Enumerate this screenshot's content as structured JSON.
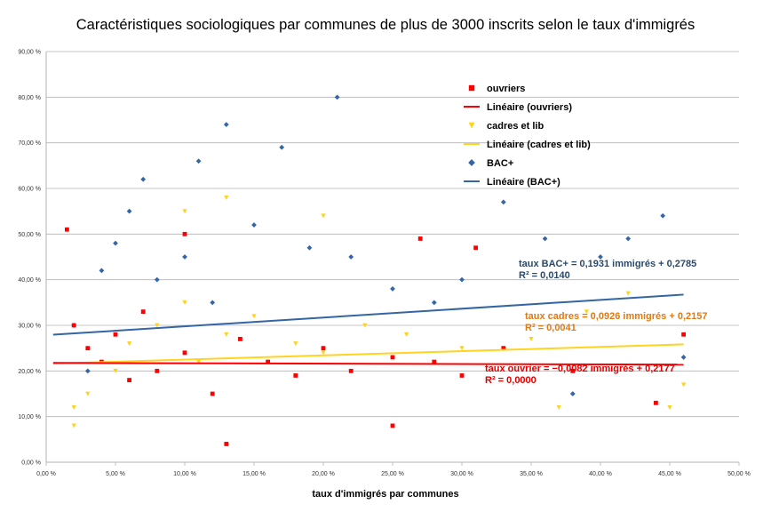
{
  "chart_data": {
    "type": "scatter",
    "title": "Caractéristiques sociologiques par communes de plus de 3000 inscrits selon le taux d'immigrés",
    "xlabel": "taux d'immigrés par communes",
    "ylabel": "",
    "xlim": [
      0,
      0.5
    ],
    "ylim": [
      0,
      0.9
    ],
    "x_ticks": [
      "0,00 %",
      "5,00 %",
      "10,00 %",
      "15,00 %",
      "20,00 %",
      "25,00 %",
      "30,00 %",
      "35,00 %",
      "40,00 %",
      "45,00 %",
      "50,00 %"
    ],
    "y_ticks": [
      "0,00 %",
      "10,00 %",
      "20,00 %",
      "30,00 %",
      "40,00 %",
      "50,00 %",
      "60,00 %",
      "70,00 %",
      "80,00 %",
      "90,00 %"
    ],
    "grid": "horizontal",
    "legend_position": "top-right",
    "series": [
      {
        "name": "ouvriers",
        "marker": "square",
        "color": "#ff0000",
        "points": [
          [
            0.02,
            0.3
          ],
          [
            0.03,
            0.25
          ],
          [
            0.04,
            0.22
          ],
          [
            0.05,
            0.28
          ],
          [
            0.06,
            0.18
          ],
          [
            0.07,
            0.33
          ],
          [
            0.08,
            0.2
          ],
          [
            0.1,
            0.24
          ],
          [
            0.12,
            0.15
          ],
          [
            0.14,
            0.27
          ],
          [
            0.16,
            0.22
          ],
          [
            0.18,
            0.19
          ],
          [
            0.2,
            0.25
          ],
          [
            0.22,
            0.2
          ],
          [
            0.25,
            0.23
          ],
          [
            0.28,
            0.22
          ],
          [
            0.3,
            0.19
          ],
          [
            0.33,
            0.25
          ],
          [
            0.38,
            0.2
          ],
          [
            0.44,
            0.13
          ],
          [
            0.46,
            0.28
          ],
          [
            0.015,
            0.51
          ],
          [
            0.1,
            0.5
          ],
          [
            0.27,
            0.49
          ],
          [
            0.31,
            0.47
          ],
          [
            0.25,
            0.08
          ],
          [
            0.13,
            0.04
          ]
        ]
      },
      {
        "name": "Linéaire (ouvriers)",
        "line": true,
        "color": "#ff0000"
      },
      {
        "name": "cadres et lib",
        "marker": "triangle",
        "color": "#ffd320",
        "points": [
          [
            0.02,
            0.12
          ],
          [
            0.03,
            0.15
          ],
          [
            0.05,
            0.2
          ],
          [
            0.06,
            0.26
          ],
          [
            0.08,
            0.3
          ],
          [
            0.1,
            0.35
          ],
          [
            0.11,
            0.22
          ],
          [
            0.13,
            0.28
          ],
          [
            0.15,
            0.32
          ],
          [
            0.18,
            0.26
          ],
          [
            0.2,
            0.24
          ],
          [
            0.23,
            0.3
          ],
          [
            0.26,
            0.28
          ],
          [
            0.3,
            0.25
          ],
          [
            0.35,
            0.27
          ],
          [
            0.39,
            0.33
          ],
          [
            0.42,
            0.37
          ],
          [
            0.45,
            0.12
          ],
          [
            0.46,
            0.17
          ],
          [
            0.02,
            0.08
          ],
          [
            0.1,
            0.55
          ],
          [
            0.13,
            0.58
          ],
          [
            0.2,
            0.54
          ],
          [
            0.37,
            0.12
          ]
        ]
      },
      {
        "name": "Linéaire (cadres et lib)",
        "line": true,
        "color": "#ffd320"
      },
      {
        "name": "BAC+",
        "marker": "diamond",
        "color": "#3465a4",
        "points": [
          [
            0.02,
            0.3
          ],
          [
            0.04,
            0.42
          ],
          [
            0.05,
            0.48
          ],
          [
            0.06,
            0.55
          ],
          [
            0.07,
            0.62
          ],
          [
            0.08,
            0.4
          ],
          [
            0.1,
            0.45
          ],
          [
            0.11,
            0.66
          ],
          [
            0.12,
            0.35
          ],
          [
            0.13,
            0.74
          ],
          [
            0.15,
            0.52
          ],
          [
            0.17,
            0.69
          ],
          [
            0.19,
            0.47
          ],
          [
            0.21,
            0.8
          ],
          [
            0.22,
            0.45
          ],
          [
            0.25,
            0.38
          ],
          [
            0.28,
            0.35
          ],
          [
            0.3,
            0.4
          ],
          [
            0.33,
            0.57
          ],
          [
            0.36,
            0.49
          ],
          [
            0.4,
            0.45
          ],
          [
            0.42,
            0.49
          ],
          [
            0.445,
            0.54
          ],
          [
            0.46,
            0.23
          ],
          [
            0.38,
            0.15
          ],
          [
            0.03,
            0.2
          ]
        ]
      },
      {
        "name": "Linéaire (BAC+)",
        "line": true,
        "color": "#3465a4"
      }
    ],
    "trendlines": [
      {
        "series": "BAC+",
        "slope": 0.1931,
        "intercept": 0.2785,
        "x_range": [
          0.005,
          0.46
        ],
        "color": "#3465a4",
        "equation": "taux BAC+ = 0,1931 immigrés + 0,2785",
        "r2": "R² = 0,0140",
        "label_color": "#2a4a6b"
      },
      {
        "series": "cadres et lib",
        "slope": 0.0926,
        "intercept": 0.2157,
        "x_range": [
          0.005,
          0.46
        ],
        "color": "#ffd320",
        "equation": "taux cadres = 0,0926 immigrés + 0,2157",
        "r2": "R² = 0,0041",
        "label_color": "#e07a10"
      },
      {
        "series": "ouvriers",
        "slope": -0.0082,
        "intercept": 0.2177,
        "x_range": [
          0.005,
          0.46
        ],
        "color": "#ff0000",
        "equation": "taux ouvrier = −0,0082 immigrés + 0,2177",
        "r2": "R² = 0,0000",
        "label_color": "#e00000"
      }
    ]
  }
}
